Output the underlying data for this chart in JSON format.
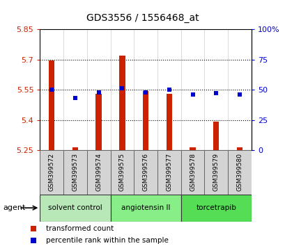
{
  "title": "GDS3556 / 1556468_at",
  "samples": [
    "GSM399572",
    "GSM399573",
    "GSM399574",
    "GSM399575",
    "GSM399576",
    "GSM399577",
    "GSM399578",
    "GSM399579",
    "GSM399580"
  ],
  "red_values": [
    5.695,
    5.265,
    5.53,
    5.72,
    5.543,
    5.53,
    5.265,
    5.39,
    5.265
  ],
  "blue_percentiles": [
    50,
    43,
    48,
    51,
    48,
    50,
    46,
    47,
    46
  ],
  "ylim_left": [
    5.25,
    5.85
  ],
  "ylim_right": [
    0,
    100
  ],
  "yticks_left": [
    5.25,
    5.4,
    5.55,
    5.7,
    5.85
  ],
  "yticks_right": [
    0,
    25,
    50,
    75,
    100
  ],
  "ytick_labels_right": [
    "0",
    "25",
    "50",
    "75",
    "100%"
  ],
  "baseline": 5.25,
  "bar_color": "#cc2200",
  "dot_color": "#0000cc",
  "grid_color": "#000000",
  "agent_groups": [
    {
      "label": "solvent control",
      "start": 0,
      "end": 2,
      "color": "#b8e8b8"
    },
    {
      "label": "angiotensin II",
      "start": 3,
      "end": 5,
      "color": "#88ee88"
    },
    {
      "label": "torcetrapib",
      "start": 6,
      "end": 8,
      "color": "#55dd55"
    }
  ],
  "legend_items": [
    {
      "label": "transformed count",
      "color": "#cc2200"
    },
    {
      "label": "percentile rank within the sample",
      "color": "#0000cc"
    }
  ],
  "background_color": "#ffffff",
  "plot_bg": "#ffffff",
  "tick_label_color_left": "#cc2200",
  "tick_label_color_right": "#0000cc",
  "cell_bg": "#d4d4d4",
  "cell_edge": "#888888",
  "bar_width": 0.25
}
